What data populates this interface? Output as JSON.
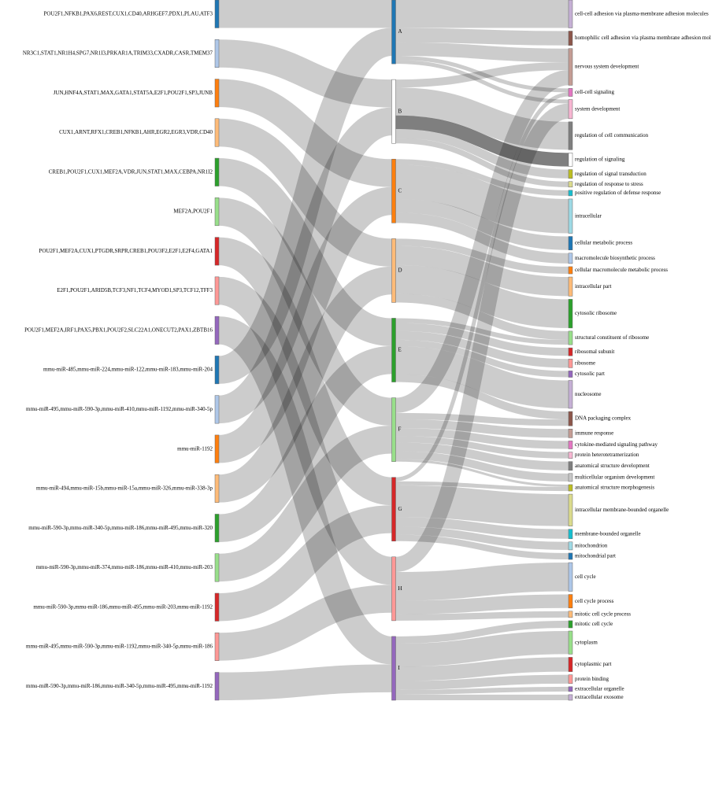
{
  "chart_data": {
    "type": "sankey",
    "link_color": "#000000",
    "link_opacity": 0.2,
    "highlight_opacity": 0.5,
    "nodes": [
      {
        "name": "POU2F1,NFKB1,PAX6,REST,CUX1,CD40,ARHGEF7,PDX1,PLAU,ATF3",
        "color": "#1f77b4"
      },
      {
        "name": "NR3C1,STAT1,NR1H4,SPG7,NR1I3,PRKAR1A,TRIM33,CXADR,CASR,TMEM37",
        "color": "#aec7e8"
      },
      {
        "name": "JUN,HNF4A,STAT1,MAX,GATA1,STAT5A,E2F1,POU2F1,SP3,JUNB",
        "color": "#ff7f0e"
      },
      {
        "name": "CUX1,ARNT,RFX1,CREB1,NFKB1,AHR,EGR2,EGR3,VDR,CD40",
        "color": "#ffbb78"
      },
      {
        "name": "CREB1,POU2F1,CUX1,MEF2A,VDR,JUN,STAT1,MAX,CEBPA,NR1I2",
        "color": "#2ca02c"
      },
      {
        "name": "MEF2A,POU2F1",
        "color": "#98df8a"
      },
      {
        "name": "POU2F1,MEF2A,CUX1,PTGDR,SRPR,CREB1,POU3F2,E2F1,E2F4,GATA1",
        "color": "#d62728"
      },
      {
        "name": "E2F1,POU2F1,ARID5B,TCF3,NF1,TCF4,MYOD1,SP3,TCF12,TFF3",
        "color": "#ff9896"
      },
      {
        "name": "POU2F1,MEF2A,IRF1,PAX5,PBX1,POU2F2,SLC22A1,ONECUT2,PAX1,ZBTB16",
        "color": "#9467bd"
      },
      {
        "name": "mmu-miR-485,mmu-miR-224,mmu-miR-122,mmu-miR-183,mmu-miR-204",
        "color": "#1f77b4"
      },
      {
        "name": "mmu-miR-495,mmu-miR-590-3p,mmu-miR-410,mmu-miR-1192,mmu-miR-340-5p",
        "color": "#aec7e8"
      },
      {
        "name": "mmu-miR-1192",
        "color": "#ff7f0e"
      },
      {
        "name": "mmu-miR-494,mmu-miR-15b,mmu-miR-15a,mmu-miR-326,mmu-miR-338-3p",
        "color": "#ffbb78"
      },
      {
        "name": "mmu-miR-590-3p,mmu-miR-340-5p,mmu-miR-186,mmu-miR-495,mmu-miR-320",
        "color": "#2ca02c"
      },
      {
        "name": "mmu-miR-590-3p,mmu-miR-374,mmu-miR-186,mmu-miR-410,mmu-miR-203",
        "color": "#98df8a"
      },
      {
        "name": "mmu-miR-590-3p,mmu-miR-186,mmu-miR-495,mmu-miR-203,mmu-miR-1192",
        "color": "#d62728"
      },
      {
        "name": "mmu-miR-495,mmu-miR-590-3p,mmu-miR-1192,mmu-miR-340-5p,mmu-miR-186",
        "color": "#ff9896"
      },
      {
        "name": "mmu-miR-590-3p,mmu-miR-186,mmu-miR-340-5p,mmu-miR-495,mmu-miR-1192",
        "color": "#9467bd"
      },
      {
        "name": "A",
        "color": "#1f77b4"
      },
      {
        "name": "B",
        "color": "#ffffff"
      },
      {
        "name": "C",
        "color": "#ff7f0e"
      },
      {
        "name": "D",
        "color": "#ffbb78"
      },
      {
        "name": "E",
        "color": "#2ca02c"
      },
      {
        "name": "F",
        "color": "#98df8a"
      },
      {
        "name": "G",
        "color": "#d62728"
      },
      {
        "name": "H",
        "color": "#ff9896"
      },
      {
        "name": "I",
        "color": "#9467bd"
      },
      {
        "name": "cell-cell adhesion via plasma-membrane adhesion molecules",
        "color": "#c5b0d5"
      },
      {
        "name": "homophilic cell adhesion via plasma membrane adhesion mol",
        "color": "#8c564b"
      },
      {
        "name": "nervous system development",
        "color": "#c49c94"
      },
      {
        "name": "cell-cell signaling",
        "color": "#e377c2"
      },
      {
        "name": "system development",
        "color": "#f7b6d2"
      },
      {
        "name": "regulation of cell communication",
        "color": "#7f7f7f"
      },
      {
        "name": "regulation of signaling",
        "color": "#ffffff"
      },
      {
        "name": "regulation of signal transduction",
        "color": "#bcbd22"
      },
      {
        "name": "regulation of response to stress",
        "color": "#dbdb8d"
      },
      {
        "name": "positive regulation of defense response",
        "color": "#17becf"
      },
      {
        "name": "intracellular",
        "color": "#9edae5"
      },
      {
        "name": "cellular metabolic process",
        "color": "#1f77b4"
      },
      {
        "name": "macromolecule biosynthetic process",
        "color": "#aec7e8"
      },
      {
        "name": "cellular macromolecule metabolic process",
        "color": "#ff7f0e"
      },
      {
        "name": "intracellular part",
        "color": "#ffbb78"
      },
      {
        "name": "cytosolic ribosome",
        "color": "#2ca02c"
      },
      {
        "name": "structural constituent of ribosome",
        "color": "#98df8a"
      },
      {
        "name": "ribosomal subunit",
        "color": "#d62728"
      },
      {
        "name": "ribosome",
        "color": "#ff9896"
      },
      {
        "name": "cytosolic part",
        "color": "#9467bd"
      },
      {
        "name": "nucleosome",
        "color": "#c5b0d5"
      },
      {
        "name": "DNA packaging complex",
        "color": "#8c564b"
      },
      {
        "name": "immune response",
        "color": "#c49c94"
      },
      {
        "name": "cytokine-mediated signaling pathway",
        "color": "#e377c2"
      },
      {
        "name": "protein heterotetramerization",
        "color": "#f7b6d2"
      },
      {
        "name": "anatomical structure development",
        "color": "#7f7f7f"
      },
      {
        "name": "multicellular organism development",
        "color": "#c7c7c7"
      },
      {
        "name": "anatomical structure morphogenesis",
        "color": "#bcbd22"
      },
      {
        "name": "intracellular membrane-bounded organelle",
        "color": "#dbdb8d"
      },
      {
        "name": "membrane-bounded organelle",
        "color": "#17becf"
      },
      {
        "name": "mitochondrion",
        "color": "#9edae5"
      },
      {
        "name": "mitochondrial part",
        "color": "#1f77b4"
      },
      {
        "name": "cell cycle",
        "color": "#aec7e8"
      },
      {
        "name": "cell cycle process",
        "color": "#ff7f0e"
      },
      {
        "name": "mitotic cell cycle process",
        "color": "#ffbb78"
      },
      {
        "name": "mitotic cell cycle",
        "color": "#2ca02c"
      },
      {
        "name": "cytoplasm",
        "color": "#98df8a"
      },
      {
        "name": "cytoplasmic part",
        "color": "#d62728"
      },
      {
        "name": "protein binding",
        "color": "#ff9896"
      },
      {
        "name": "extracellular organelle",
        "color": "#9467bd"
      },
      {
        "name": "extracellular exosome",
        "color": "#c5b0d5"
      }
    ],
    "links": [
      {
        "source": 0,
        "target": 18,
        "value": 35
      },
      {
        "source": 1,
        "target": 19,
        "value": 35
      },
      {
        "source": 2,
        "target": 20,
        "value": 35
      },
      {
        "source": 3,
        "target": 21,
        "value": 35
      },
      {
        "source": 4,
        "target": 22,
        "value": 35
      },
      {
        "source": 5,
        "target": 23,
        "value": 35
      },
      {
        "source": 6,
        "target": 24,
        "value": 35
      },
      {
        "source": 7,
        "target": 25,
        "value": 35
      },
      {
        "source": 8,
        "target": 26,
        "value": 35
      },
      {
        "source": 9,
        "target": 18,
        "value": 35
      },
      {
        "source": 10,
        "target": 19,
        "value": 35
      },
      {
        "source": 11,
        "target": 20,
        "value": 35
      },
      {
        "source": 12,
        "target": 21,
        "value": 35
      },
      {
        "source": 13,
        "target": 22,
        "value": 35
      },
      {
        "source": 14,
        "target": 23,
        "value": 35
      },
      {
        "source": 15,
        "target": 24,
        "value": 35
      },
      {
        "source": 16,
        "target": 25,
        "value": 35
      },
      {
        "source": 17,
        "target": 26,
        "value": 35
      },
      {
        "source": 18,
        "target": 27,
        "value": 35
      },
      {
        "source": 18,
        "target": 28,
        "value": 18
      },
      {
        "source": 18,
        "target": 29,
        "value": 17
      },
      {
        "source": 18,
        "target": 30,
        "value": 5
      },
      {
        "source": 18,
        "target": 31,
        "value": 5
      },
      {
        "source": 19,
        "target": 29,
        "value": 10
      },
      {
        "source": 19,
        "target": 32,
        "value": 35
      },
      {
        "source": 19,
        "target": 33,
        "value": 17,
        "highlighted": true
      },
      {
        "source": 19,
        "target": 34,
        "value": 11
      },
      {
        "source": 19,
        "target": 35,
        "value": 7
      },
      {
        "source": 20,
        "target": 36,
        "value": 7
      },
      {
        "source": 20,
        "target": 37,
        "value": 43
      },
      {
        "source": 20,
        "target": 38,
        "value": 17
      },
      {
        "source": 20,
        "target": 39,
        "value": 13
      },
      {
        "source": 21,
        "target": 40,
        "value": 9
      },
      {
        "source": 21,
        "target": 41,
        "value": 24
      },
      {
        "source": 21,
        "target": 42,
        "value": 36
      },
      {
        "source": 21,
        "target": 43,
        "value": 11
      },
      {
        "source": 22,
        "target": 43,
        "value": 6
      },
      {
        "source": 22,
        "target": 44,
        "value": 10
      },
      {
        "source": 22,
        "target": 45,
        "value": 11
      },
      {
        "source": 22,
        "target": 46,
        "value": 8
      },
      {
        "source": 22,
        "target": 47,
        "value": 35
      },
      {
        "source": 22,
        "target": 48,
        "value": 10
      },
      {
        "source": 23,
        "target": 29,
        "value": 19
      },
      {
        "source": 23,
        "target": 48,
        "value": 8
      },
      {
        "source": 23,
        "target": 49,
        "value": 11
      },
      {
        "source": 23,
        "target": 50,
        "value": 10
      },
      {
        "source": 23,
        "target": 51,
        "value": 8
      },
      {
        "source": 23,
        "target": 52,
        "value": 11
      },
      {
        "source": 23,
        "target": 53,
        "value": 10
      },
      {
        "source": 23,
        "target": 54,
        "value": 3
      },
      {
        "source": 24,
        "target": 30,
        "value": 5
      },
      {
        "source": 24,
        "target": 54,
        "value": 5
      },
      {
        "source": 24,
        "target": 55,
        "value": 40
      },
      {
        "source": 24,
        "target": 56,
        "value": 12
      },
      {
        "source": 24,
        "target": 57,
        "value": 10
      },
      {
        "source": 24,
        "target": 58,
        "value": 8
      },
      {
        "source": 25,
        "target": 31,
        "value": 19
      },
      {
        "source": 25,
        "target": 59,
        "value": 36
      },
      {
        "source": 25,
        "target": 60,
        "value": 17
      },
      {
        "source": 25,
        "target": 61,
        "value": 8
      },
      {
        "source": 26,
        "target": 62,
        "value": 9
      },
      {
        "source": 26,
        "target": 63,
        "value": 29
      },
      {
        "source": 26,
        "target": 64,
        "value": 18
      },
      {
        "source": 26,
        "target": 65,
        "value": 11
      },
      {
        "source": 26,
        "target": 66,
        "value": 6
      },
      {
        "source": 26,
        "target": 67,
        "value": 7
      }
    ]
  }
}
